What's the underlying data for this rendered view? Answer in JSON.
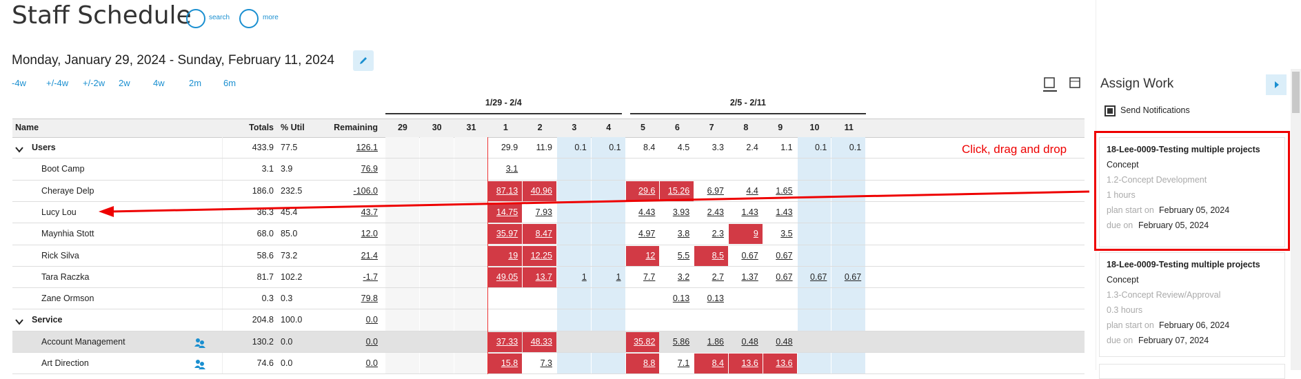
{
  "header": {
    "title": "Staff Schedule",
    "actions": [
      "search",
      "more"
    ]
  },
  "date_range": "Monday, January 29, 2024 - Sunday, February 11, 2024",
  "range_links": [
    "-4w",
    "+/-4w",
    "+/-2w",
    "2w",
    "4w",
    "2m",
    "6m"
  ],
  "table": {
    "week_groups": [
      "1/29 - 2/4",
      "2/5 - 2/11"
    ],
    "columns": [
      "Name",
      "Totals",
      "% Util",
      "Remaining"
    ],
    "days": [
      "29",
      "30",
      "31",
      "1",
      "2",
      "3",
      "4",
      "5",
      "6",
      "7",
      "8",
      "9",
      "10",
      "11"
    ],
    "rows": [
      {
        "name": "Users",
        "group": true,
        "totals": "433.9",
        "util": "77.5",
        "remaining": "126.1",
        "days": [
          null,
          null,
          null,
          "29.9",
          "11.9",
          "0.1",
          "0.1",
          "8.4",
          "4.5",
          "3.3",
          "2.4",
          "1.1",
          "0.1",
          "0.1"
        ]
      },
      {
        "name": "Boot Camp",
        "totals": "3.1",
        "util": "3.9",
        "remaining": "76.9",
        "days": [
          null,
          null,
          null,
          "3.1",
          null,
          null,
          null,
          null,
          null,
          null,
          null,
          null,
          null,
          null
        ]
      },
      {
        "name": "Cheraye Delp",
        "totals": "186.0",
        "util": "232.5",
        "remaining": "-106.0",
        "days": [
          null,
          null,
          null,
          "87.13",
          "40.96",
          null,
          null,
          "29.6",
          "15.26",
          "6.97",
          "4.4",
          "1.65",
          null,
          null
        ]
      },
      {
        "name": "Lucy Lou",
        "totals": "36.3",
        "util": "45.4",
        "remaining": "43.7",
        "days": [
          null,
          null,
          null,
          "14.75",
          "7.93",
          null,
          null,
          "4.43",
          "3.93",
          "2.43",
          "1.43",
          "1.43",
          null,
          null
        ]
      },
      {
        "name": "Maynhia Stott",
        "totals": "68.0",
        "util": "85.0",
        "remaining": "12.0",
        "days": [
          null,
          null,
          null,
          "35.97",
          "8.47",
          null,
          null,
          "4.97",
          "3.8",
          "2.3",
          "9",
          "3.5",
          null,
          null
        ]
      },
      {
        "name": "Rick Silva",
        "totals": "58.6",
        "util": "73.2",
        "remaining": "21.4",
        "days": [
          null,
          null,
          null,
          "19",
          "12.25",
          null,
          null,
          "12",
          "5.5",
          "8.5",
          "0.67",
          "0.67",
          null,
          null
        ]
      },
      {
        "name": "Tara Raczka",
        "totals": "81.7",
        "util": "102.2",
        "remaining": "-1.7",
        "days": [
          null,
          null,
          null,
          "49.05",
          "13.7",
          "1",
          "1",
          "7.7",
          "3.2",
          "2.7",
          "1.37",
          "0.67",
          "0.67",
          "0.67"
        ]
      },
      {
        "name": "Zane Ormson",
        "totals": "0.3",
        "util": "0.3",
        "remaining": "79.8",
        "days": [
          null,
          null,
          null,
          null,
          null,
          null,
          null,
          null,
          "0.13",
          "0.13",
          null,
          null,
          null,
          null
        ]
      },
      {
        "name": "Service",
        "group": true,
        "totals": "204.8",
        "util": "100.0",
        "remaining": "0.0",
        "days": [
          null,
          null,
          null,
          null,
          null,
          null,
          null,
          null,
          null,
          null,
          null,
          null,
          null,
          null
        ]
      },
      {
        "name": "Account Management",
        "totals": "130.2",
        "util": "0.0",
        "remaining": "0.0",
        "days": [
          null,
          null,
          null,
          "37.33",
          "48.33",
          null,
          null,
          "35.82",
          "5.86",
          "1.86",
          "0.48",
          "0.48",
          null,
          null
        ]
      },
      {
        "name": "Art Direction",
        "totals": "74.6",
        "util": "0.0",
        "remaining": "0.0",
        "days": [
          null,
          null,
          null,
          "15.8",
          "7.3",
          null,
          null,
          "8.8",
          "7.1",
          "8.4",
          "13.6",
          "13.6",
          null,
          null
        ]
      }
    ]
  },
  "assign_work": {
    "title": "Assign Work",
    "notify": "Send Notifications",
    "cards": [
      {
        "project": "18-Lee-0009-Testing multiple projects",
        "phase": "Concept",
        "task": "1.2-Concept Development",
        "hours": "1 hours",
        "plan_start_label": "plan start on",
        "plan_start": "February 05, 2024",
        "due_label": "due on",
        "due": "February 05, 2024"
      },
      {
        "project": "18-Lee-0009-Testing multiple projects",
        "phase": "Concept",
        "task": "1.3-Concept Review/Approval",
        "hours": "0.3 hours",
        "plan_start_label": "plan start on",
        "plan_start": "February 06, 2024",
        "due_label": "due on",
        "due": "February 07, 2024"
      }
    ]
  },
  "annotation": "Click, drag and drop"
}
